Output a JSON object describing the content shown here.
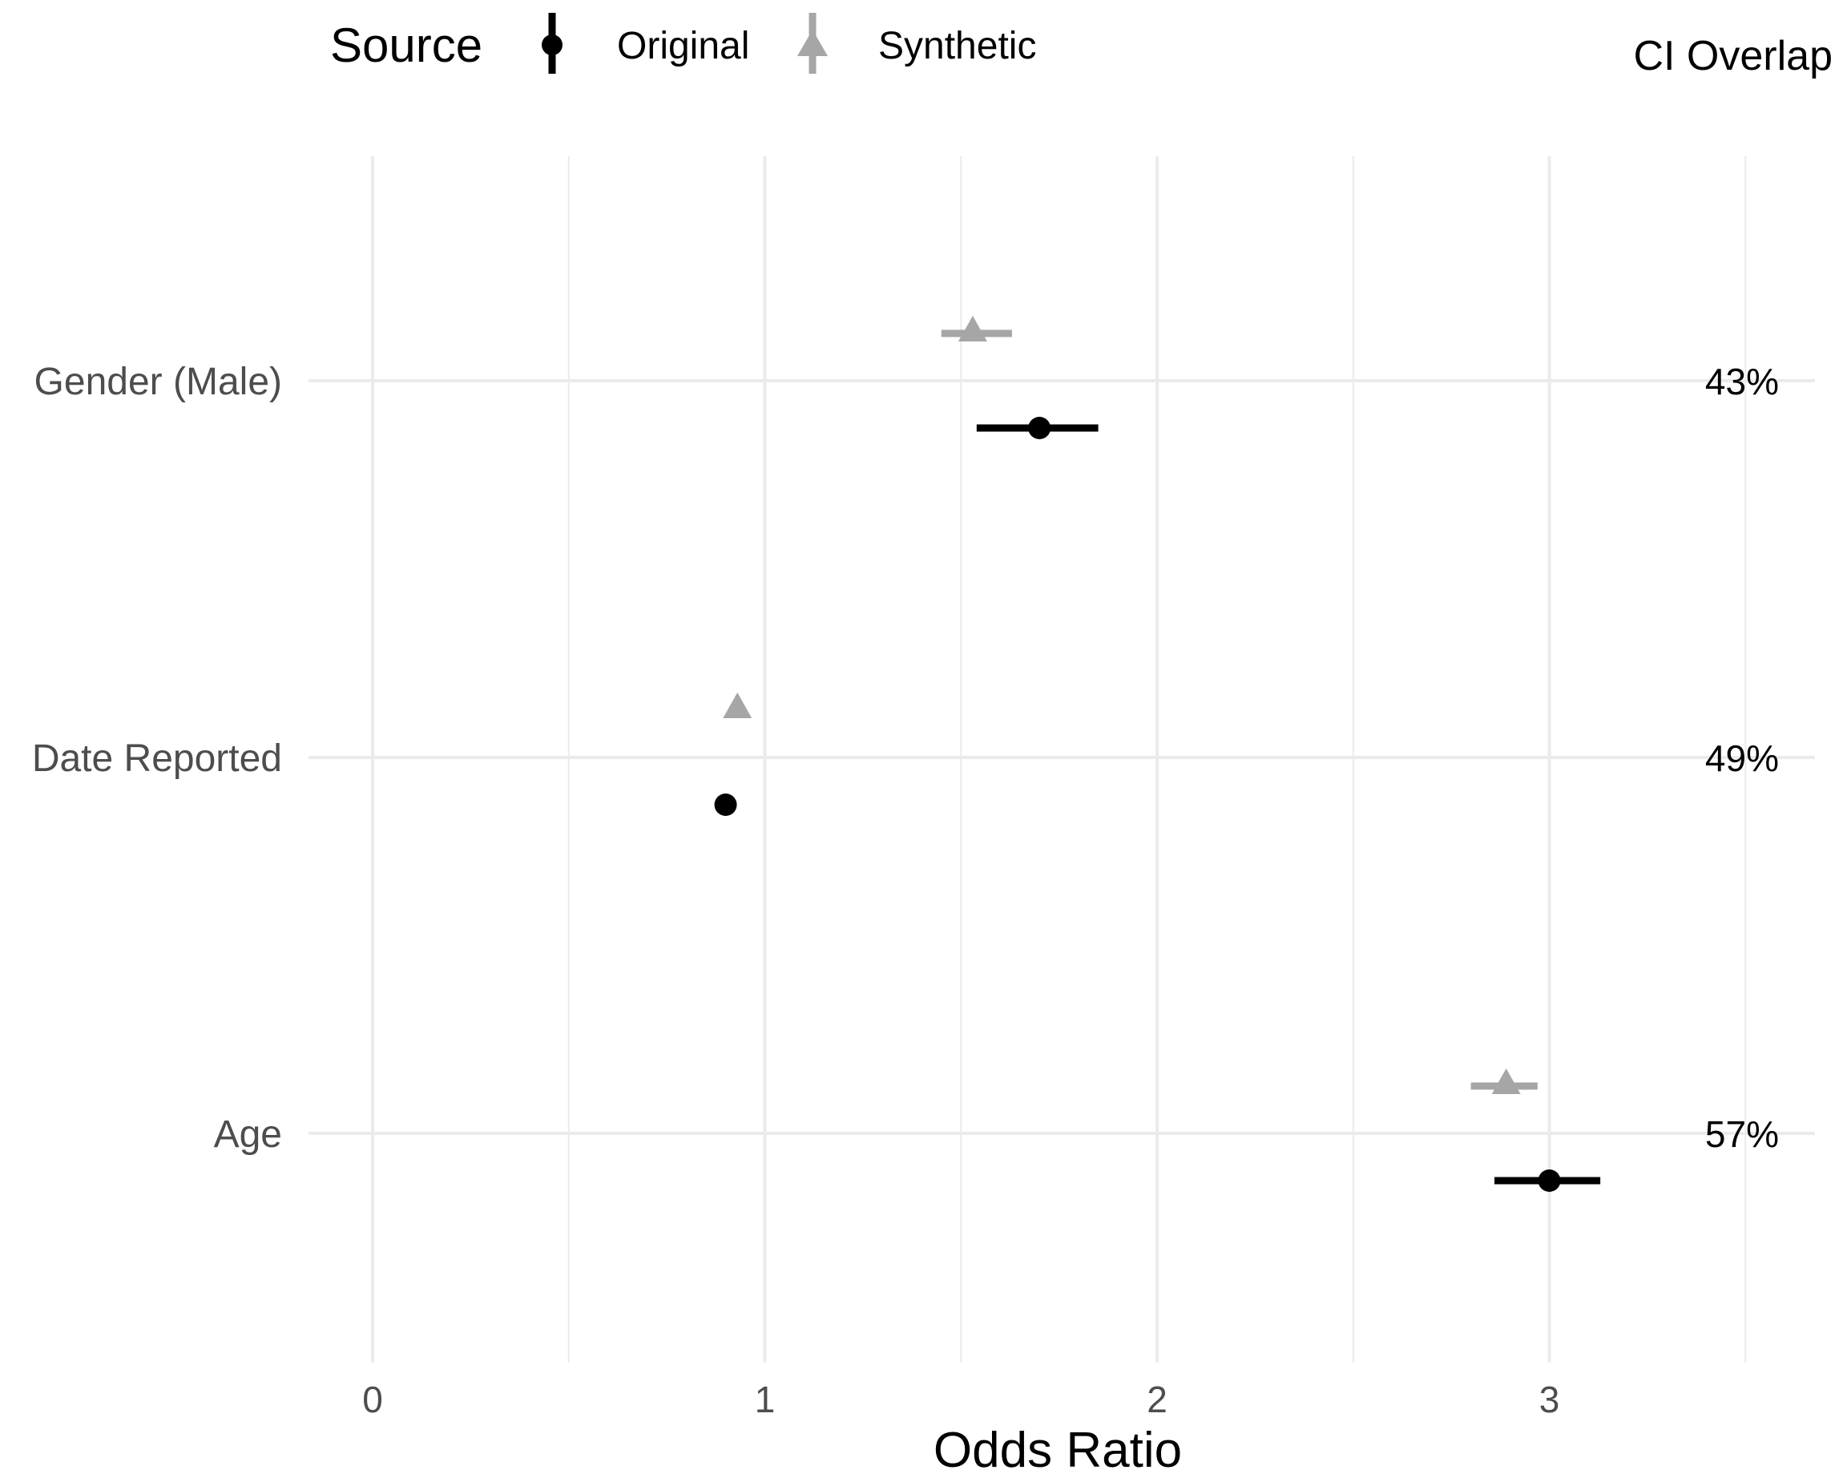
{
  "chart_data": {
    "type": "scatter",
    "xlabel": "Odds Ratio",
    "xlim": [
      -0.1,
      3.5
    ],
    "x_ticks": [
      0,
      1,
      2,
      3
    ],
    "x_minor": [
      0.5,
      1.5,
      2.5,
      3.5
    ],
    "categories": [
      "Gender (Male)",
      "Date Reported",
      "Age"
    ],
    "legend": {
      "title": "Source",
      "position": "top-left",
      "entries": [
        {
          "name": "Original",
          "shape": "circle",
          "color": "#000000"
        },
        {
          "name": "Synthetic",
          "shape": "triangle",
          "color": "#a6a6a6"
        }
      ]
    },
    "series": [
      {
        "name": "Original",
        "color": "#000000",
        "shape": "circle",
        "points": [
          {
            "category": "Gender (Male)",
            "estimate": 1.7,
            "lower": 1.54,
            "upper": 1.85
          },
          {
            "category": "Date Reported",
            "estimate": 0.9,
            "lower": 0.9,
            "upper": 0.9
          },
          {
            "category": "Age",
            "estimate": 3.0,
            "lower": 2.86,
            "upper": 3.13
          }
        ]
      },
      {
        "name": "Synthetic",
        "color": "#a6a6a6",
        "shape": "triangle",
        "points": [
          {
            "category": "Gender (Male)",
            "estimate": 1.53,
            "lower": 1.45,
            "upper": 1.63
          },
          {
            "category": "Date Reported",
            "estimate": 0.93,
            "lower": 0.93,
            "upper": 0.93
          },
          {
            "category": "Age",
            "estimate": 2.89,
            "lower": 2.8,
            "upper": 2.97
          }
        ]
      }
    ],
    "ci_overlap": {
      "title": "CI Overlap",
      "values": [
        {
          "category": "Gender (Male)",
          "label": "43%"
        },
        {
          "category": "Date Reported",
          "label": "49%"
        },
        {
          "category": "Age",
          "label": "57%"
        }
      ]
    },
    "grid": true
  }
}
